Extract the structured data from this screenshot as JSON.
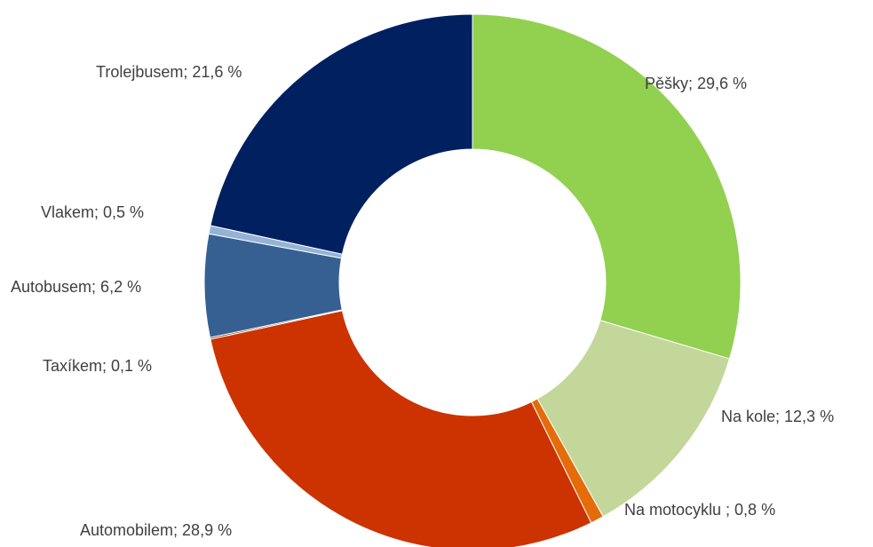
{
  "chart_data": {
    "type": "donut",
    "categories": [
      "Pěšky",
      "Na kole",
      "Na motocyklu",
      "Automobilem",
      "Taxíkem",
      "Autobusem",
      "Vlakem",
      "Trolejbusem"
    ],
    "values": [
      29.6,
      12.3,
      0.8,
      28.9,
      0.1,
      6.2,
      0.5,
      21.6
    ],
    "value_labels": [
      "Pěšky; 29,6 %",
      "Na kole; 12,3 %",
      "Na motocyklu ; 0,8 %",
      "Automobilem; 28,9 %",
      "Taxíkem; 0,1 %",
      "Autobusem; 6,2 %",
      "Vlakem; 0,5 %",
      "Trolejbusem; 21,6 %"
    ],
    "colors": [
      "#92d050",
      "#c4d79b",
      "#e46c0a",
      "#cc3300",
      "#8c2a00",
      "#366092",
      "#95b3d7",
      "#002060"
    ]
  }
}
